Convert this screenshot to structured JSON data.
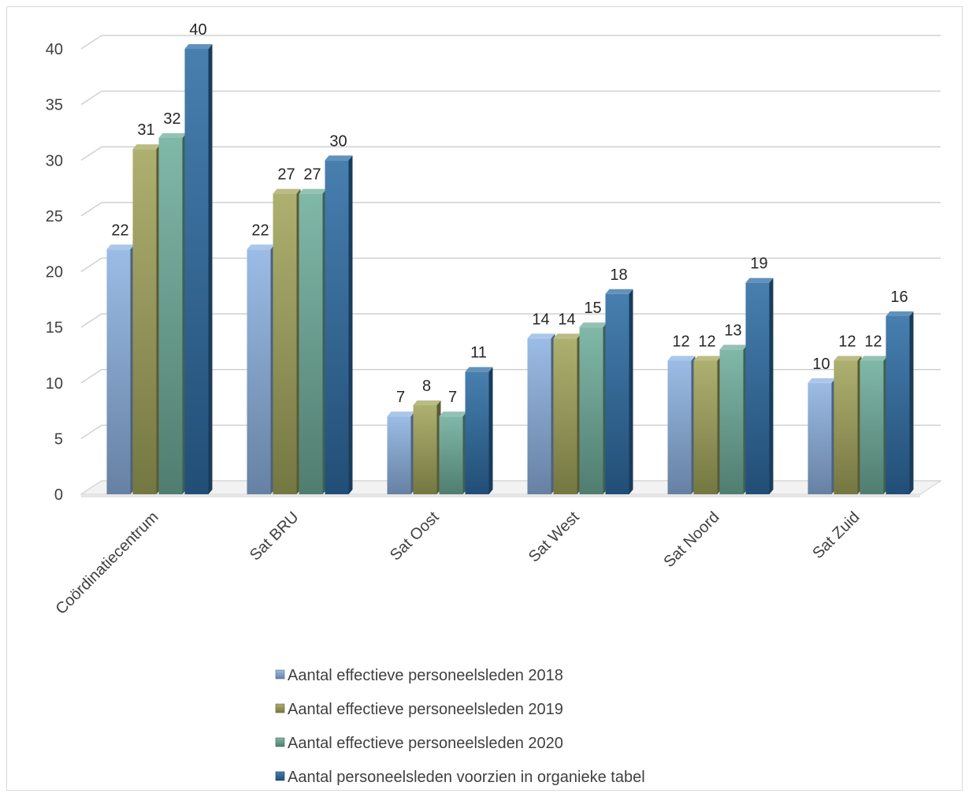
{
  "chart_data": {
    "type": "bar",
    "title": "",
    "xlabel": "",
    "ylabel": "",
    "ylim": [
      0,
      40
    ],
    "yticks": [
      0,
      5,
      10,
      15,
      20,
      25,
      30,
      35,
      40
    ],
    "grid": true,
    "legend_position": "bottom",
    "categories": [
      "Coördinatiecentrum",
      "Sat BRU",
      "Sat Oost",
      "Sat West",
      "Sat Noord",
      "Sat Zuid"
    ],
    "series": [
      {
        "name": "Aantal effectieve personeelsleden 2018",
        "color": "#8DB3E2",
        "values": [
          22,
          22,
          7,
          14,
          12,
          10
        ]
      },
      {
        "name": "Aantal effectieve personeelsleden 2019",
        "color": "#A3A55C",
        "values": [
          31,
          27,
          8,
          14,
          12,
          12
        ]
      },
      {
        "name": "Aantal effectieve personeelsleden 2020",
        "color": "#6FAE9C",
        "values": [
          32,
          27,
          7,
          15,
          13,
          12
        ]
      },
      {
        "name": "Aantal personeelsleden voorzien in organieke tabel",
        "color": "#2E6DA4",
        "values": [
          40,
          30,
          11,
          18,
          19,
          16
        ]
      }
    ]
  }
}
